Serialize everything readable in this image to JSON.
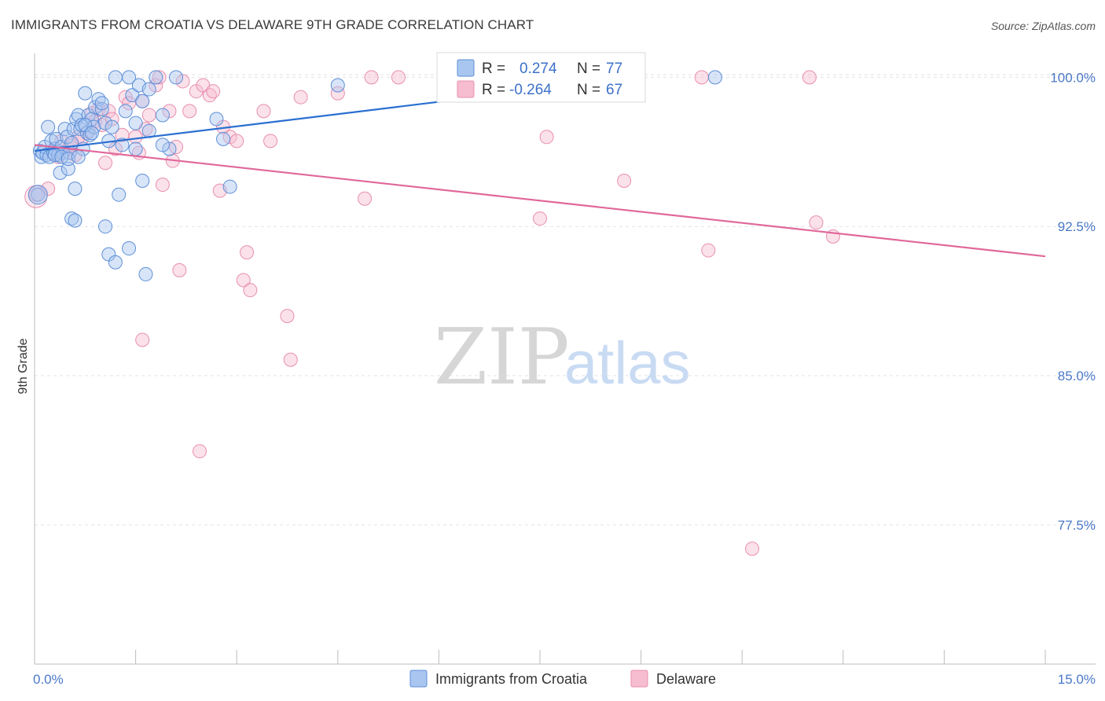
{
  "title": "IMMIGRANTS FROM CROATIA VS DELAWARE 9TH GRADE CORRELATION CHART",
  "source": "Source: ZipAtlas.com",
  "watermark": {
    "zip": "ZIP",
    "atlas": "atlas"
  },
  "colors": {
    "blue_fill": "#a9c6f0",
    "blue_stroke": "#5d8fd8",
    "blue_line": "#2a6fd1",
    "pink_fill": "#f6bcd0",
    "pink_stroke": "#e88fb0",
    "pink_line": "#e0679a",
    "tick_text": "#4a78c8",
    "grid": "#e3e3e3"
  },
  "stats_legend": [
    {
      "series": "Immigrants from Croatia",
      "r_label": "R =",
      "r_value": "0.274",
      "n_label": "N =",
      "n_value": "77"
    },
    {
      "series": "Delaware",
      "r_label": "R =",
      "r_value": "-0.264",
      "n_label": "N =",
      "n_value": "67"
    }
  ],
  "chart_data": {
    "type": "scatter",
    "title": "IMMIGRANTS FROM CROATIA VS DELAWARE 9TH GRADE CORRELATION CHART",
    "xlabel": "",
    "ylabel": "9th Grade",
    "xlim": [
      0,
      15
    ],
    "ylim": [
      70.5,
      101.2
    ],
    "x_tick_labels": [
      {
        "value": 0,
        "label": "0.0%"
      },
      {
        "value": 15,
        "label": "15.0%"
      }
    ],
    "x_minor_ticks": [
      1.5,
      3.0,
      4.5,
      6.0,
      7.5,
      9.0,
      10.5,
      12.0,
      13.5,
      15.0
    ],
    "y_ticks": [
      {
        "value": 100,
        "label": "100.0%"
      },
      {
        "value": 92.5,
        "label": "92.5%"
      },
      {
        "value": 85,
        "label": "85.0%"
      },
      {
        "value": 77.5,
        "label": "77.5%"
      }
    ],
    "grid": true,
    "legend_position": "bottom-center",
    "series": [
      {
        "name": "Immigrants from Croatia",
        "color": "#a9c6f0",
        "trend": {
          "x": [
            0,
            9.0
          ],
          "y": [
            96.3,
            100.0
          ]
        },
        "points": [
          [
            0.05,
            94.1
          ],
          [
            0.08,
            96.3
          ],
          [
            0.1,
            96.0
          ],
          [
            0.12,
            96.2
          ],
          [
            0.15,
            96.5
          ],
          [
            0.18,
            96.1
          ],
          [
            0.2,
            97.5
          ],
          [
            0.22,
            96.0
          ],
          [
            0.25,
            96.8
          ],
          [
            0.28,
            96.2
          ],
          [
            0.3,
            96.4
          ],
          [
            0.32,
            96.9
          ],
          [
            0.35,
            96.1
          ],
          [
            0.38,
            95.2
          ],
          [
            0.4,
            96.5
          ],
          [
            0.42,
            96.2
          ],
          [
            0.45,
            97.4
          ],
          [
            0.48,
            97.0
          ],
          [
            0.5,
            95.4
          ],
          [
            0.52,
            96.2
          ],
          [
            0.55,
            96.7
          ],
          [
            0.58,
            97.4
          ],
          [
            0.6,
            94.4
          ],
          [
            0.62,
            97.9
          ],
          [
            0.65,
            98.1
          ],
          [
            0.68,
            97.4
          ],
          [
            0.7,
            97.6
          ],
          [
            0.72,
            96.4
          ],
          [
            0.75,
            99.2
          ],
          [
            0.78,
            97.2
          ],
          [
            0.8,
            98.1
          ],
          [
            0.82,
            97.1
          ],
          [
            0.85,
            97.9
          ],
          [
            0.88,
            97.5
          ],
          [
            0.9,
            98.5
          ],
          [
            0.95,
            98.9
          ],
          [
            1.0,
            98.4
          ],
          [
            1.05,
            97.7
          ],
          [
            1.1,
            96.8
          ],
          [
            1.15,
            97.5
          ],
          [
            1.2,
            100.0
          ],
          [
            1.3,
            96.6
          ],
          [
            1.35,
            98.3
          ],
          [
            1.4,
            100.0
          ],
          [
            1.45,
            99.1
          ],
          [
            1.5,
            97.7
          ],
          [
            1.55,
            99.6
          ],
          [
            1.6,
            98.8
          ],
          [
            1.7,
            97.3
          ],
          [
            1.8,
            100.0
          ],
          [
            1.9,
            98.1
          ],
          [
            2.0,
            96.4
          ],
          [
            2.1,
            100.0
          ],
          [
            0.3,
            96.1
          ],
          [
            0.4,
            96.0
          ],
          [
            0.5,
            95.9
          ],
          [
            0.55,
            92.9
          ],
          [
            0.6,
            92.8
          ],
          [
            0.65,
            96.0
          ],
          [
            0.75,
            97.6
          ],
          [
            0.85,
            97.2
          ],
          [
            1.0,
            98.7
          ],
          [
            1.05,
            92.5
          ],
          [
            1.1,
            91.1
          ],
          [
            1.2,
            90.7
          ],
          [
            1.25,
            94.1
          ],
          [
            1.4,
            91.4
          ],
          [
            1.6,
            94.8
          ],
          [
            1.65,
            90.1
          ],
          [
            2.8,
            96.9
          ],
          [
            2.9,
            94.5
          ],
          [
            2.7,
            97.9
          ],
          [
            4.5,
            99.6
          ],
          [
            10.1,
            100.0
          ],
          [
            1.9,
            96.6
          ],
          [
            1.7,
            99.4
          ],
          [
            1.5,
            96.4
          ]
        ]
      },
      {
        "name": "Delaware",
        "color": "#f6bcd0",
        "trend": {
          "x": [
            0,
            15
          ],
          "y": [
            96.6,
            91.0
          ]
        },
        "points": [
          [
            0.02,
            94.1
          ],
          [
            0.2,
            94.4
          ],
          [
            0.3,
            96.3
          ],
          [
            0.35,
            96.0
          ],
          [
            0.4,
            96.8
          ],
          [
            0.5,
            96.4
          ],
          [
            0.6,
            96.1
          ],
          [
            0.7,
            96.9
          ],
          [
            0.8,
            97.3
          ],
          [
            0.85,
            98.2
          ],
          [
            0.9,
            97.8
          ],
          [
            0.95,
            98.4
          ],
          [
            1.0,
            97.6
          ],
          [
            1.05,
            95.7
          ],
          [
            1.1,
            98.3
          ],
          [
            1.15,
            97.9
          ],
          [
            1.2,
            96.4
          ],
          [
            1.3,
            97.1
          ],
          [
            1.35,
            99.0
          ],
          [
            1.4,
            98.7
          ],
          [
            1.5,
            97.0
          ],
          [
            1.55,
            96.2
          ],
          [
            1.6,
            98.8
          ],
          [
            1.65,
            97.4
          ],
          [
            1.7,
            98.1
          ],
          [
            1.8,
            99.6
          ],
          [
            1.85,
            100.0
          ],
          [
            1.9,
            94.6
          ],
          [
            2.0,
            98.3
          ],
          [
            2.05,
            95.8
          ],
          [
            2.1,
            96.5
          ],
          [
            2.2,
            99.8
          ],
          [
            2.3,
            98.3
          ],
          [
            2.4,
            99.3
          ],
          [
            2.5,
            99.6
          ],
          [
            2.6,
            99.1
          ],
          [
            2.65,
            99.3
          ],
          [
            2.75,
            94.3
          ],
          [
            2.8,
            97.5
          ],
          [
            2.9,
            97.0
          ],
          [
            3.0,
            96.8
          ],
          [
            3.1,
            89.8
          ],
          [
            3.15,
            91.2
          ],
          [
            3.2,
            89.3
          ],
          [
            3.4,
            98.3
          ],
          [
            3.5,
            96.8
          ],
          [
            3.75,
            88.0
          ],
          [
            3.8,
            85.8
          ],
          [
            3.95,
            99.0
          ],
          [
            4.5,
            99.2
          ],
          [
            4.9,
            93.9
          ],
          [
            5.0,
            100.0
          ],
          [
            5.4,
            100.0
          ],
          [
            7.5,
            92.9
          ],
          [
            7.6,
            97.0
          ],
          [
            8.75,
            94.8
          ],
          [
            9.9,
            100.0
          ],
          [
            10.0,
            91.3
          ],
          [
            10.65,
            76.3
          ],
          [
            11.5,
            100.0
          ],
          [
            11.6,
            92.7
          ],
          [
            11.85,
            92.0
          ],
          [
            2.15,
            90.3
          ],
          [
            1.6,
            86.8
          ],
          [
            2.45,
            81.2
          ],
          [
            0.55,
            96.6
          ],
          [
            0.65,
            97.0
          ]
        ]
      }
    ]
  }
}
